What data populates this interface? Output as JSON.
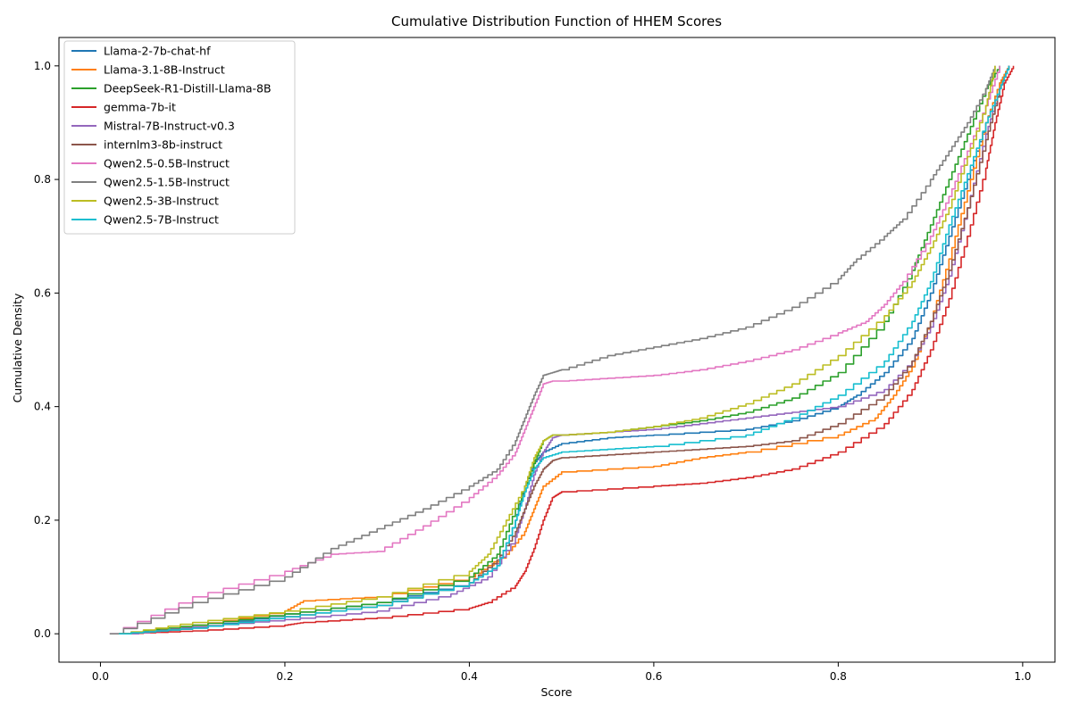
{
  "chart_data": {
    "type": "line",
    "title": "Cumulative Distribution Function of HHEM Scores",
    "xlabel": "Score",
    "ylabel": "Cumulative Density",
    "xlim": [
      -0.045,
      1.035
    ],
    "ylim": [
      -0.05,
      1.05
    ],
    "xticks": [
      0.0,
      0.2,
      0.4,
      0.6,
      0.8,
      1.0
    ],
    "yticks": [
      0.0,
      0.2,
      0.4,
      0.6,
      0.8,
      1.0
    ],
    "xtick_labels": [
      "0.0",
      "0.2",
      "0.4",
      "0.6",
      "0.8",
      "1.0"
    ],
    "ytick_labels": [
      "0.0",
      "0.2",
      "0.4",
      "0.6",
      "0.8",
      "1.0"
    ],
    "grid": false,
    "legend_position": "top-left",
    "series": [
      {
        "name": "Llama-2-7b-chat-hf",
        "color": "#1f77b4",
        "x": [
          0.02,
          0.1,
          0.2,
          0.3,
          0.4,
          0.43,
          0.45,
          0.46,
          0.47,
          0.48,
          0.5,
          0.55,
          0.6,
          0.7,
          0.75,
          0.8,
          0.82,
          0.85,
          0.88,
          0.9,
          0.92,
          0.94,
          0.96,
          0.975,
          0.985
        ],
        "y": [
          0.0,
          0.01,
          0.035,
          0.055,
          0.09,
          0.12,
          0.2,
          0.26,
          0.3,
          0.32,
          0.335,
          0.345,
          0.35,
          0.36,
          0.375,
          0.4,
          0.42,
          0.46,
          0.52,
          0.6,
          0.7,
          0.8,
          0.9,
          0.97,
          1.0
        ]
      },
      {
        "name": "Llama-3.1-8B-Instruct",
        "color": "#ff7f0e",
        "x": [
          0.02,
          0.1,
          0.2,
          0.22,
          0.3,
          0.4,
          0.44,
          0.46,
          0.47,
          0.48,
          0.5,
          0.6,
          0.65,
          0.7,
          0.8,
          0.84,
          0.86,
          0.88,
          0.9,
          0.92,
          0.94,
          0.96,
          0.975,
          0.985
        ],
        "y": [
          0.0,
          0.015,
          0.04,
          0.058,
          0.065,
          0.1,
          0.14,
          0.18,
          0.22,
          0.26,
          0.285,
          0.295,
          0.31,
          0.32,
          0.35,
          0.38,
          0.42,
          0.47,
          0.55,
          0.66,
          0.78,
          0.9,
          0.97,
          1.0
        ]
      },
      {
        "name": "DeepSeek-R1-Distill-Llama-8B",
        "color": "#2ca02c",
        "x": [
          0.02,
          0.1,
          0.2,
          0.3,
          0.4,
          0.43,
          0.45,
          0.47,
          0.48,
          0.49,
          0.5,
          0.55,
          0.6,
          0.65,
          0.7,
          0.75,
          0.8,
          0.85,
          0.88,
          0.9,
          0.92,
          0.94,
          0.96,
          0.975
        ],
        "y": [
          0.0,
          0.015,
          0.035,
          0.055,
          0.1,
          0.14,
          0.22,
          0.3,
          0.34,
          0.35,
          0.35,
          0.355,
          0.365,
          0.375,
          0.39,
          0.415,
          0.46,
          0.55,
          0.64,
          0.72,
          0.8,
          0.88,
          0.96,
          1.0
        ]
      },
      {
        "name": "gemma-7b-it",
        "color": "#d62728",
        "x": [
          0.02,
          0.1,
          0.2,
          0.22,
          0.3,
          0.4,
          0.42,
          0.45,
          0.46,
          0.47,
          0.48,
          0.49,
          0.5,
          0.6,
          0.65,
          0.7,
          0.75,
          0.8,
          0.85,
          0.88,
          0.9,
          0.92,
          0.94,
          0.96,
          0.97,
          0.98,
          0.99
        ],
        "y": [
          0.0,
          0.005,
          0.015,
          0.02,
          0.028,
          0.045,
          0.055,
          0.085,
          0.11,
          0.15,
          0.2,
          0.24,
          0.25,
          0.26,
          0.265,
          0.275,
          0.29,
          0.32,
          0.37,
          0.43,
          0.5,
          0.59,
          0.7,
          0.82,
          0.9,
          0.97,
          1.0
        ]
      },
      {
        "name": "Mistral-7B-Instruct-v0.3",
        "color": "#9467bd",
        "x": [
          0.03,
          0.1,
          0.2,
          0.3,
          0.38,
          0.42,
          0.45,
          0.46,
          0.47,
          0.48,
          0.49,
          0.5,
          0.55,
          0.6,
          0.65,
          0.7,
          0.75,
          0.8,
          0.85,
          0.88,
          0.9,
          0.92,
          0.94,
          0.96,
          0.975,
          0.985
        ],
        "y": [
          0.0,
          0.012,
          0.025,
          0.04,
          0.07,
          0.1,
          0.17,
          0.22,
          0.28,
          0.32,
          0.345,
          0.35,
          0.355,
          0.36,
          0.37,
          0.38,
          0.39,
          0.4,
          0.43,
          0.48,
          0.54,
          0.63,
          0.75,
          0.88,
          0.96,
          1.0
        ]
      },
      {
        "name": "internlm3-8b-instruct",
        "color": "#8c564b",
        "x": [
          0.02,
          0.1,
          0.2,
          0.3,
          0.4,
          0.43,
          0.45,
          0.46,
          0.47,
          0.48,
          0.49,
          0.5,
          0.55,
          0.6,
          0.65,
          0.7,
          0.75,
          0.8,
          0.85,
          0.88,
          0.9,
          0.92,
          0.94,
          0.96,
          0.975,
          0.985
        ],
        "y": [
          0.0,
          0.01,
          0.03,
          0.05,
          0.09,
          0.13,
          0.18,
          0.22,
          0.26,
          0.29,
          0.305,
          0.31,
          0.315,
          0.32,
          0.325,
          0.33,
          0.34,
          0.37,
          0.42,
          0.48,
          0.55,
          0.64,
          0.75,
          0.87,
          0.96,
          1.0
        ]
      },
      {
        "name": "Qwen2.5-0.5B-Instruct",
        "color": "#e377c2",
        "x": [
          0.01,
          0.1,
          0.2,
          0.25,
          0.3,
          0.35,
          0.4,
          0.43,
          0.45,
          0.46,
          0.47,
          0.48,
          0.49,
          0.5,
          0.55,
          0.6,
          0.65,
          0.7,
          0.75,
          0.8,
          0.83,
          0.85,
          0.87,
          0.9,
          0.92,
          0.94,
          0.96,
          0.975
        ],
        "y": [
          0.0,
          0.065,
          0.11,
          0.14,
          0.145,
          0.19,
          0.24,
          0.28,
          0.32,
          0.36,
          0.4,
          0.44,
          0.445,
          0.445,
          0.45,
          0.455,
          0.465,
          0.48,
          0.5,
          0.53,
          0.55,
          0.58,
          0.62,
          0.7,
          0.77,
          0.85,
          0.93,
          1.0
        ]
      },
      {
        "name": "Qwen2.5-1.5B-Instruct",
        "color": "#7f7f7f",
        "x": [
          0.01,
          0.1,
          0.2,
          0.25,
          0.3,
          0.35,
          0.4,
          0.43,
          0.45,
          0.46,
          0.47,
          0.48,
          0.49,
          0.5,
          0.55,
          0.6,
          0.65,
          0.7,
          0.75,
          0.8,
          0.82,
          0.85,
          0.87,
          0.9,
          0.92,
          0.94,
          0.96,
          0.97
        ],
        "y": [
          0.0,
          0.055,
          0.1,
          0.15,
          0.185,
          0.22,
          0.26,
          0.29,
          0.34,
          0.38,
          0.42,
          0.455,
          0.46,
          0.465,
          0.49,
          0.505,
          0.52,
          0.54,
          0.575,
          0.625,
          0.66,
          0.7,
          0.73,
          0.8,
          0.85,
          0.9,
          0.96,
          1.0
        ]
      },
      {
        "name": "Qwen2.5-3B-Instruct",
        "color": "#bcbd22",
        "x": [
          0.02,
          0.1,
          0.2,
          0.3,
          0.4,
          0.42,
          0.44,
          0.46,
          0.47,
          0.48,
          0.49,
          0.5,
          0.55,
          0.6,
          0.65,
          0.7,
          0.75,
          0.8,
          0.85,
          0.88,
          0.9,
          0.92,
          0.94,
          0.96,
          0.97
        ],
        "y": [
          0.0,
          0.02,
          0.04,
          0.065,
          0.11,
          0.14,
          0.2,
          0.26,
          0.31,
          0.34,
          0.35,
          0.35,
          0.355,
          0.365,
          0.38,
          0.405,
          0.44,
          0.49,
          0.56,
          0.62,
          0.68,
          0.75,
          0.84,
          0.93,
          1.0
        ]
      },
      {
        "name": "Qwen2.5-7B-Instruct",
        "color": "#17becf",
        "x": [
          0.02,
          0.1,
          0.2,
          0.3,
          0.4,
          0.43,
          0.45,
          0.46,
          0.47,
          0.48,
          0.5,
          0.55,
          0.6,
          0.7,
          0.75,
          0.8,
          0.85,
          0.88,
          0.9,
          0.92,
          0.94,
          0.96,
          0.975,
          0.985
        ],
        "y": [
          0.0,
          0.01,
          0.03,
          0.05,
          0.09,
          0.12,
          0.2,
          0.25,
          0.29,
          0.31,
          0.32,
          0.325,
          0.33,
          0.35,
          0.38,
          0.42,
          0.48,
          0.55,
          0.62,
          0.72,
          0.81,
          0.9,
          0.96,
          1.0
        ]
      }
    ]
  }
}
